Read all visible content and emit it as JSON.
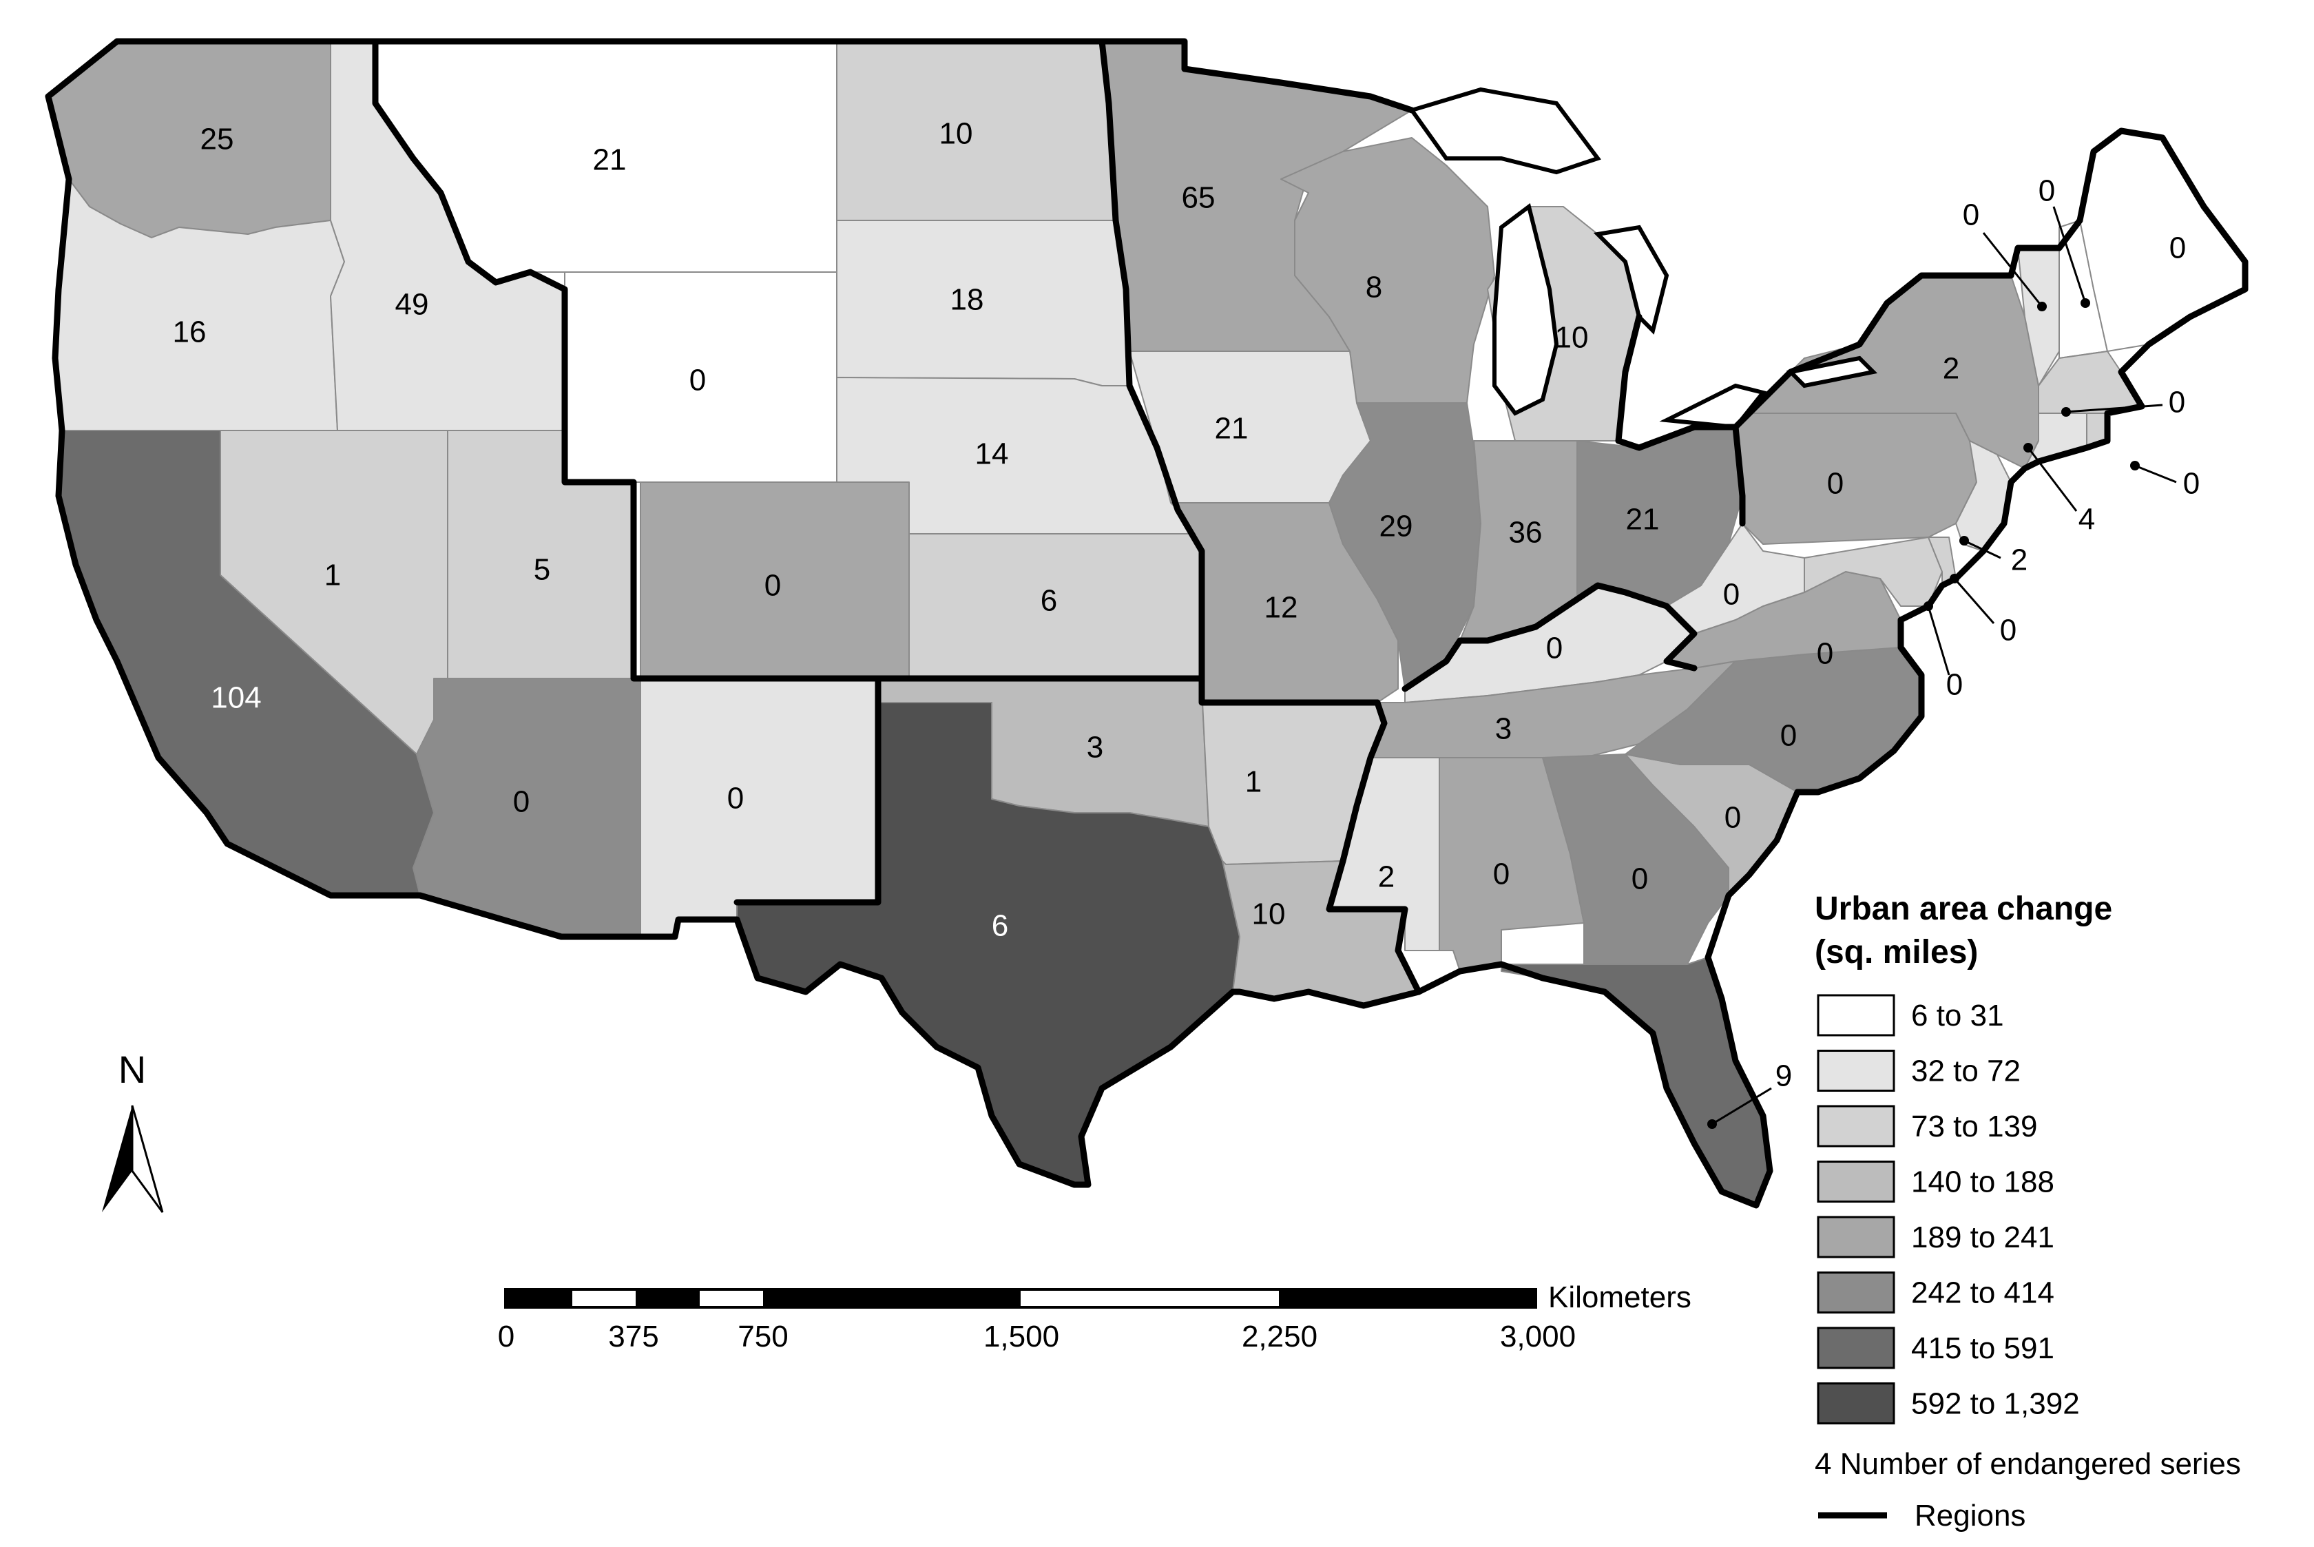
{
  "legend": {
    "title_line1": "Urban area change",
    "title_line2": "(sq. miles)",
    "classes": [
      {
        "label": "6 to 31",
        "color": "#ffffff"
      },
      {
        "label": "32 to 72",
        "color": "#e4e4e4"
      },
      {
        "label": "73 to 139",
        "color": "#d2d2d2"
      },
      {
        "label": "140 to 188",
        "color": "#bcbcbc"
      },
      {
        "label": "189 to 241",
        "color": "#a7a7a7"
      },
      {
        "label": "242 to 414",
        "color": "#8c8c8c"
      },
      {
        "label": "415 to 591",
        "color": "#6c6c6c"
      },
      {
        "label": "592 to 1,392",
        "color": "#505050"
      }
    ],
    "series_item": "4 Number of endangered series",
    "regions_item": "Regions"
  },
  "scale_bar": {
    "unit": "Kilometers",
    "ticks": [
      "0",
      "375",
      "750",
      "1,500",
      "2,250",
      "3,000"
    ]
  },
  "north_arrow": {
    "label": "N"
  },
  "states": [
    {
      "id": "WA",
      "value": "25"
    },
    {
      "id": "OR",
      "value": "16"
    },
    {
      "id": "ID",
      "value": "49"
    },
    {
      "id": "MT",
      "value": "21"
    },
    {
      "id": "WY",
      "value": "0"
    },
    {
      "id": "ND",
      "value": "10"
    },
    {
      "id": "SD",
      "value": "18"
    },
    {
      "id": "NE",
      "value": "14"
    },
    {
      "id": "KS",
      "value": "6"
    },
    {
      "id": "CO",
      "value": "0"
    },
    {
      "id": "UT",
      "value": "5"
    },
    {
      "id": "NV",
      "value": "1"
    },
    {
      "id": "CA",
      "value": "104"
    },
    {
      "id": "AZ",
      "value": "0"
    },
    {
      "id": "NM",
      "value": "0"
    },
    {
      "id": "TX",
      "value": "6"
    },
    {
      "id": "OK",
      "value": "3"
    },
    {
      "id": "MN",
      "value": "65"
    },
    {
      "id": "IA",
      "value": "21"
    },
    {
      "id": "MO",
      "value": "12"
    },
    {
      "id": "AR",
      "value": "1"
    },
    {
      "id": "LA",
      "value": "10"
    },
    {
      "id": "WI",
      "value": "8"
    },
    {
      "id": "IL",
      "value": "29"
    },
    {
      "id": "IN",
      "value": "36"
    },
    {
      "id": "MI",
      "value": "10"
    },
    {
      "id": "OH",
      "value": "21"
    },
    {
      "id": "KY",
      "value": "0"
    },
    {
      "id": "TN",
      "value": "3"
    },
    {
      "id": "MS",
      "value": "2"
    },
    {
      "id": "AL",
      "value": "0"
    },
    {
      "id": "GA",
      "value": "0"
    },
    {
      "id": "FL",
      "value": "9"
    },
    {
      "id": "SC",
      "value": "0"
    },
    {
      "id": "NC",
      "value": "0"
    },
    {
      "id": "VA",
      "value": "0"
    },
    {
      "id": "WV",
      "value": "0"
    },
    {
      "id": "PA",
      "value": "0"
    },
    {
      "id": "NY",
      "value": "2"
    },
    {
      "id": "NJ",
      "value": "2"
    },
    {
      "id": "DE",
      "value": "0"
    },
    {
      "id": "MD",
      "value": "0"
    },
    {
      "id": "CT",
      "value": "4"
    },
    {
      "id": "RI",
      "value": "0"
    },
    {
      "id": "MA",
      "value": "0"
    },
    {
      "id": "VT",
      "value": "0"
    },
    {
      "id": "NH",
      "value": "0"
    },
    {
      "id": "ME",
      "value": "0"
    }
  ]
}
